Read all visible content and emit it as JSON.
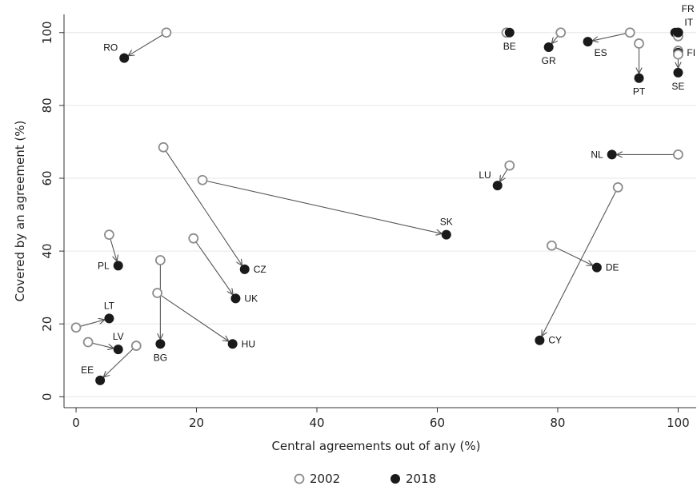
{
  "chart_data": {
    "type": "scatter",
    "xlabel": "Central agreements out of any (%)",
    "ylabel": "Covered by an agreement (%)",
    "xlim": [
      -2,
      103
    ],
    "ylim": [
      -3,
      105
    ],
    "xticks": [
      0,
      20,
      40,
      60,
      80,
      100
    ],
    "yticks": [
      0,
      20,
      40,
      60,
      80,
      100
    ],
    "grid": "horizontal",
    "legend": {
      "position": "bottom",
      "entries": [
        {
          "label": "2002",
          "marker": "hollow-circle",
          "color": "#8c8c8c"
        },
        {
          "label": "2018",
          "marker": "filled-circle",
          "color": "#1a1a1a"
        }
      ]
    },
    "colors": {
      "hollow": "#8c8c8c",
      "filled": "#1a1a1a",
      "arrow": "#555555",
      "grid": "#e6e6e6"
    },
    "countries": [
      {
        "code": "RO",
        "x2002": 15,
        "y2002": 100,
        "x2018": 8,
        "y2018": 93,
        "label_pos": "nw"
      },
      {
        "code": "BE",
        "x2002": 71.5,
        "y2002": 100,
        "x2018": 72,
        "y2018": 100,
        "label_pos": "s"
      },
      {
        "code": "GR",
        "x2002": 80.5,
        "y2002": 100,
        "x2018": 78.5,
        "y2018": 96,
        "label_pos": "s"
      },
      {
        "code": "ES",
        "x2002": 92,
        "y2002": 100,
        "x2018": 85,
        "y2018": 97.5,
        "label_pos": "se"
      },
      {
        "code": "PT",
        "x2002": 93.5,
        "y2002": 97,
        "x2018": 93.5,
        "y2018": 87.5,
        "label_pos": "s"
      },
      {
        "code": "FR",
        "x2002": 100,
        "y2002": 100,
        "x2018": 99.5,
        "y2018": 100,
        "label_pos": "ne-high"
      },
      {
        "code": "IT",
        "x2002": 100,
        "y2002": 99,
        "x2018": 100,
        "y2018": 100,
        "label_pos": "ne"
      },
      {
        "code": "FI",
        "x2002": 100,
        "y2002": 95,
        "x2018": 100,
        "y2018": 94.5,
        "label_pos": "e"
      },
      {
        "code": "SE",
        "x2002": 100,
        "y2002": 94,
        "x2018": 100,
        "y2018": 89,
        "label_pos": "s"
      },
      {
        "code": "NL",
        "x2002": 100,
        "y2002": 66.5,
        "x2018": 89,
        "y2018": 66.5,
        "label_pos": "w"
      },
      {
        "code": "LU",
        "x2002": 72,
        "y2002": 63.5,
        "x2018": 70,
        "y2018": 58,
        "label_pos": "nw"
      },
      {
        "code": "SK",
        "x2002": 21,
        "y2002": 59.5,
        "x2018": 61.5,
        "y2018": 44.5,
        "label_pos": "n"
      },
      {
        "code": "CZ",
        "x2002": 14.5,
        "y2002": 68.5,
        "x2018": 28,
        "y2018": 35,
        "label_pos": "e"
      },
      {
        "code": "CY",
        "x2002": 90,
        "y2002": 57.5,
        "x2018": 77,
        "y2018": 15.5,
        "label_pos": "e"
      },
      {
        "code": "DE",
        "x2002": 79,
        "y2002": 41.5,
        "x2018": 86.5,
        "y2018": 35.5,
        "label_pos": "e"
      },
      {
        "code": "PL",
        "x2002": 5.5,
        "y2002": 44.5,
        "x2018": 7,
        "y2018": 36,
        "label_pos": "w"
      },
      {
        "code": "UK",
        "x2002": 19.5,
        "y2002": 43.5,
        "x2018": 26.5,
        "y2018": 27,
        "label_pos": "e"
      },
      {
        "code": "BG",
        "x2002": 14,
        "y2002": 37.5,
        "x2018": 14,
        "y2018": 14.5,
        "label_pos": "s"
      },
      {
        "code": "HU",
        "x2002": 13.5,
        "y2002": 28.5,
        "x2018": 26,
        "y2018": 14.5,
        "label_pos": "e"
      },
      {
        "code": "LT",
        "x2002": 0,
        "y2002": 19,
        "x2018": 5.5,
        "y2018": 21.5,
        "label_pos": "n"
      },
      {
        "code": "LV",
        "x2002": 2,
        "y2002": 15,
        "x2018": 7,
        "y2018": 13,
        "label_pos": "n"
      },
      {
        "code": "EE",
        "x2002": 10,
        "y2002": 14,
        "x2018": 4,
        "y2018": 4.5,
        "label_pos": "nw"
      }
    ]
  }
}
